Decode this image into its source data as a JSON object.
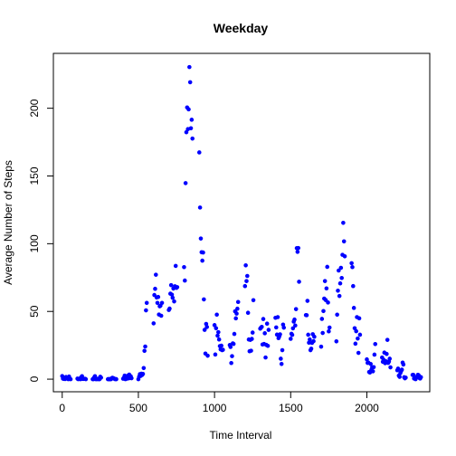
{
  "chart_data": {
    "type": "scatter",
    "title": "Weekday",
    "xlabel": "Time Interval",
    "ylabel": "Average Number of Steps",
    "xlim": [
      -58,
      2413
    ],
    "ylim": [
      -9.3,
      240.5
    ],
    "x_ticks": [
      0,
      500,
      1000,
      1500,
      2000
    ],
    "y_ticks": [
      0,
      50,
      100,
      150,
      200
    ],
    "x_tick_labels": [
      "0",
      "500",
      "1000",
      "1500",
      "2000"
    ],
    "y_tick_labels": [
      "0",
      "50",
      "100",
      "150",
      "200"
    ],
    "point_color": "#0000ff",
    "grid": false,
    "legend": "none",
    "points": [
      [
        0,
        2.3
      ],
      [
        5,
        0.4
      ],
      [
        10,
        0.2
      ],
      [
        15,
        0.2
      ],
      [
        20,
        0.1
      ],
      [
        25,
        1.6
      ],
      [
        30,
        0.7
      ],
      [
        35,
        1.2
      ],
      [
        40,
        0
      ],
      [
        45,
        1.9
      ],
      [
        50,
        0.4
      ],
      [
        55,
        0
      ],
      [
        100,
        0.4
      ],
      [
        105,
        0
      ],
      [
        110,
        0.2
      ],
      [
        115,
        0.4
      ],
      [
        120,
        0
      ],
      [
        125,
        1.5
      ],
      [
        130,
        2.2
      ],
      [
        135,
        0.2
      ],
      [
        140,
        0.2
      ],
      [
        145,
        0.3
      ],
      [
        150,
        0.3
      ],
      [
        155,
        0
      ],
      [
        200,
        0
      ],
      [
        205,
        0
      ],
      [
        210,
        1.3
      ],
      [
        215,
        2.2
      ],
      [
        220,
        0
      ],
      [
        225,
        0.1
      ],
      [
        230,
        0
      ],
      [
        235,
        0.3
      ],
      [
        240,
        0
      ],
      [
        245,
        0
      ],
      [
        250,
        1.8
      ],
      [
        255,
        1.1
      ],
      [
        300,
        0
      ],
      [
        305,
        0
      ],
      [
        310,
        0
      ],
      [
        315,
        0
      ],
      [
        320,
        0
      ],
      [
        325,
        0.7
      ],
      [
        330,
        1.0
      ],
      [
        335,
        0.7
      ],
      [
        340,
        0.5
      ],
      [
        345,
        0.1
      ],
      [
        350,
        0
      ],
      [
        355,
        0
      ],
      [
        400,
        0.3
      ],
      [
        405,
        1.1
      ],
      [
        410,
        2.6
      ],
      [
        415,
        0
      ],
      [
        420,
        0.4
      ],
      [
        425,
        0.4
      ],
      [
        430,
        2.5
      ],
      [
        435,
        0.6
      ],
      [
        440,
        3.4
      ],
      [
        445,
        0.8
      ],
      [
        450,
        2.1
      ],
      [
        455,
        0.7
      ],
      [
        500,
        0
      ],
      [
        505,
        1.9
      ],
      [
        510,
        3.7
      ],
      [
        515,
        2.4
      ],
      [
        520,
        4.0
      ],
      [
        525,
        3.1
      ],
      [
        530,
        3.9
      ],
      [
        535,
        8.2
      ],
      [
        540,
        20.9
      ],
      [
        545,
        24.1
      ],
      [
        550,
        50.8
      ],
      [
        555,
        56.3
      ],
      [
        600,
        41.2
      ],
      [
        605,
        62.1
      ],
      [
        610,
        66.7
      ],
      [
        615,
        77.1
      ],
      [
        620,
        60.3
      ],
      [
        625,
        56.3
      ],
      [
        630,
        60.7
      ],
      [
        635,
        47.7
      ],
      [
        640,
        53.8
      ],
      [
        645,
        54.2
      ],
      [
        650,
        46.8
      ],
      [
        655,
        56.3
      ],
      [
        700,
        51.1
      ],
      [
        705,
        52.1
      ],
      [
        710,
        63.1
      ],
      [
        715,
        69.4
      ],
      [
        720,
        62.4
      ],
      [
        725,
        60.1
      ],
      [
        730,
        66.9
      ],
      [
        735,
        57.4
      ],
      [
        740,
        68.6
      ],
      [
        745,
        83.6
      ],
      [
        750,
        67.4
      ],
      [
        755,
        67.9
      ],
      [
        800,
        82.7
      ],
      [
        805,
        72.8
      ],
      [
        810,
        144.7
      ],
      [
        815,
        182.3
      ],
      [
        820,
        200.6
      ],
      [
        825,
        184.6
      ],
      [
        830,
        199.2
      ],
      [
        835,
        230.4
      ],
      [
        840,
        219.2
      ],
      [
        845,
        185.2
      ],
      [
        850,
        191.5
      ],
      [
        855,
        177.6
      ],
      [
        900,
        167.4
      ],
      [
        905,
        126.7
      ],
      [
        910,
        103.8
      ],
      [
        915,
        93.7
      ],
      [
        920,
        87.5
      ],
      [
        925,
        93.5
      ],
      [
        930,
        58.9
      ],
      [
        935,
        36.4
      ],
      [
        940,
        18.9
      ],
      [
        945,
        40.8
      ],
      [
        950,
        38.5
      ],
      [
        955,
        17.3
      ],
      [
        1000,
        39.9
      ],
      [
        1005,
        18.2
      ],
      [
        1010,
        37.6
      ],
      [
        1015,
        47.6
      ],
      [
        1020,
        32.1
      ],
      [
        1025,
        34.7
      ],
      [
        1030,
        29.3
      ],
      [
        1035,
        24.4
      ],
      [
        1040,
        22.0
      ],
      [
        1045,
        24.7
      ],
      [
        1050,
        21.4
      ],
      [
        1055,
        21.7
      ],
      [
        1100,
        25.2
      ],
      [
        1105,
        23.8
      ],
      [
        1110,
        11.9
      ],
      [
        1115,
        17.0
      ],
      [
        1120,
        26.4
      ],
      [
        1125,
        26.0
      ],
      [
        1130,
        33.4
      ],
      [
        1135,
        50.1
      ],
      [
        1140,
        44.9
      ],
      [
        1145,
        48.4
      ],
      [
        1150,
        52.0
      ],
      [
        1155,
        57.0
      ],
      [
        1200,
        68.7
      ],
      [
        1205,
        84.0
      ],
      [
        1210,
        72.4
      ],
      [
        1215,
        76.2
      ],
      [
        1220,
        49.0
      ],
      [
        1225,
        29.3
      ],
      [
        1230,
        20.6
      ],
      [
        1235,
        29.0
      ],
      [
        1240,
        21.0
      ],
      [
        1245,
        29.7
      ],
      [
        1250,
        34.4
      ],
      [
        1255,
        58.3
      ],
      [
        1300,
        37.3
      ],
      [
        1305,
        38.0
      ],
      [
        1310,
        38.6
      ],
      [
        1315,
        25.6
      ],
      [
        1320,
        44.4
      ],
      [
        1325,
        26.0
      ],
      [
        1330,
        33.9
      ],
      [
        1335,
        16.0
      ],
      [
        1340,
        25.3
      ],
      [
        1345,
        41.0
      ],
      [
        1350,
        24.6
      ],
      [
        1355,
        36.4
      ],
      [
        1400,
        45.3
      ],
      [
        1405,
        38.2
      ],
      [
        1410,
        32.9
      ],
      [
        1415,
        45.8
      ],
      [
        1420,
        30.3
      ],
      [
        1425,
        31.5
      ],
      [
        1430,
        33.1
      ],
      [
        1435,
        15.1
      ],
      [
        1440,
        11.2
      ],
      [
        1445,
        21.4
      ],
      [
        1450,
        40.3
      ],
      [
        1455,
        38.0
      ],
      [
        1500,
        29.8
      ],
      [
        1505,
        33.5
      ],
      [
        1510,
        32.7
      ],
      [
        1515,
        37.5
      ],
      [
        1520,
        42.5
      ],
      [
        1525,
        44.0
      ],
      [
        1530,
        39.6
      ],
      [
        1535,
        51.7
      ],
      [
        1540,
        96.7
      ],
      [
        1545,
        94.0
      ],
      [
        1550,
        96.8
      ],
      [
        1555,
        71.9
      ],
      [
        1600,
        47.3
      ],
      [
        1605,
        47.2
      ],
      [
        1610,
        57.8
      ],
      [
        1615,
        32.8
      ],
      [
        1620,
        26.9
      ],
      [
        1625,
        29.3
      ],
      [
        1630,
        21.4
      ],
      [
        1635,
        22.5
      ],
      [
        1640,
        26.8
      ],
      [
        1645,
        33.2
      ],
      [
        1650,
        28.0
      ],
      [
        1655,
        31.3
      ],
      [
        1700,
        24.0
      ],
      [
        1705,
        44.5
      ],
      [
        1710,
        34.1
      ],
      [
        1715,
        50.3
      ],
      [
        1720,
        59.5
      ],
      [
        1725,
        72.4
      ],
      [
        1730,
        58.4
      ],
      [
        1735,
        67.0
      ],
      [
        1740,
        82.9
      ],
      [
        1745,
        56.6
      ],
      [
        1750,
        35.3
      ],
      [
        1755,
        38.1
      ],
      [
        1800,
        27.9
      ],
      [
        1805,
        47.6
      ],
      [
        1810,
        65.3
      ],
      [
        1815,
        80.2
      ],
      [
        1820,
        61.4
      ],
      [
        1825,
        70.7
      ],
      [
        1830,
        82.2
      ],
      [
        1835,
        74.7
      ],
      [
        1840,
        91.8
      ],
      [
        1845,
        115.4
      ],
      [
        1850,
        101.7
      ],
      [
        1855,
        90.7
      ],
      [
        1900,
        85.6
      ],
      [
        1905,
        82.7
      ],
      [
        1910,
        68.7
      ],
      [
        1915,
        52.6
      ],
      [
        1920,
        37.6
      ],
      [
        1925,
        26.2
      ],
      [
        1930,
        35.4
      ],
      [
        1935,
        45.8
      ],
      [
        1940,
        30.0
      ],
      [
        1945,
        19.4
      ],
      [
        1950,
        44.9
      ],
      [
        1955,
        32.8
      ],
      [
        2000,
        14.6
      ],
      [
        2005,
        12.0
      ],
      [
        2010,
        12.2
      ],
      [
        2015,
        5.3
      ],
      [
        2020,
        4.9
      ],
      [
        2025,
        11.2
      ],
      [
        2030,
        7.0
      ],
      [
        2035,
        8.8
      ],
      [
        2040,
        5.8
      ],
      [
        2045,
        8.9
      ],
      [
        2050,
        18.1
      ],
      [
        2055,
        25.9
      ],
      [
        2100,
        16.0
      ],
      [
        2105,
        12.8
      ],
      [
        2110,
        14.3
      ],
      [
        2115,
        19.6
      ],
      [
        2120,
        11.8
      ],
      [
        2125,
        13.2
      ],
      [
        2130,
        18.6
      ],
      [
        2135,
        29.0
      ],
      [
        2140,
        12.0
      ],
      [
        2145,
        13.0
      ],
      [
        2150,
        15.1
      ],
      [
        2155,
        8.7
      ],
      [
        2200,
        6.6
      ],
      [
        2205,
        7.8
      ],
      [
        2210,
        2.6
      ],
      [
        2215,
        1.7
      ],
      [
        2220,
        4.5
      ],
      [
        2225,
        6.0
      ],
      [
        2230,
        7.0
      ],
      [
        2235,
        12.2
      ],
      [
        2240,
        10.8
      ],
      [
        2245,
        1.4
      ],
      [
        2250,
        0.6
      ],
      [
        2255,
        1.1
      ],
      [
        2300,
        3.1
      ],
      [
        2305,
        3.2
      ],
      [
        2310,
        0.5
      ],
      [
        2315,
        0.4
      ],
      [
        2320,
        0
      ],
      [
        2325,
        1.4
      ],
      [
        2330,
        1.9
      ],
      [
        2335,
        3.2
      ],
      [
        2340,
        2.9
      ],
      [
        2345,
        0.9
      ],
      [
        2350,
        0.5
      ],
      [
        2355,
        1.5
      ]
    ]
  }
}
